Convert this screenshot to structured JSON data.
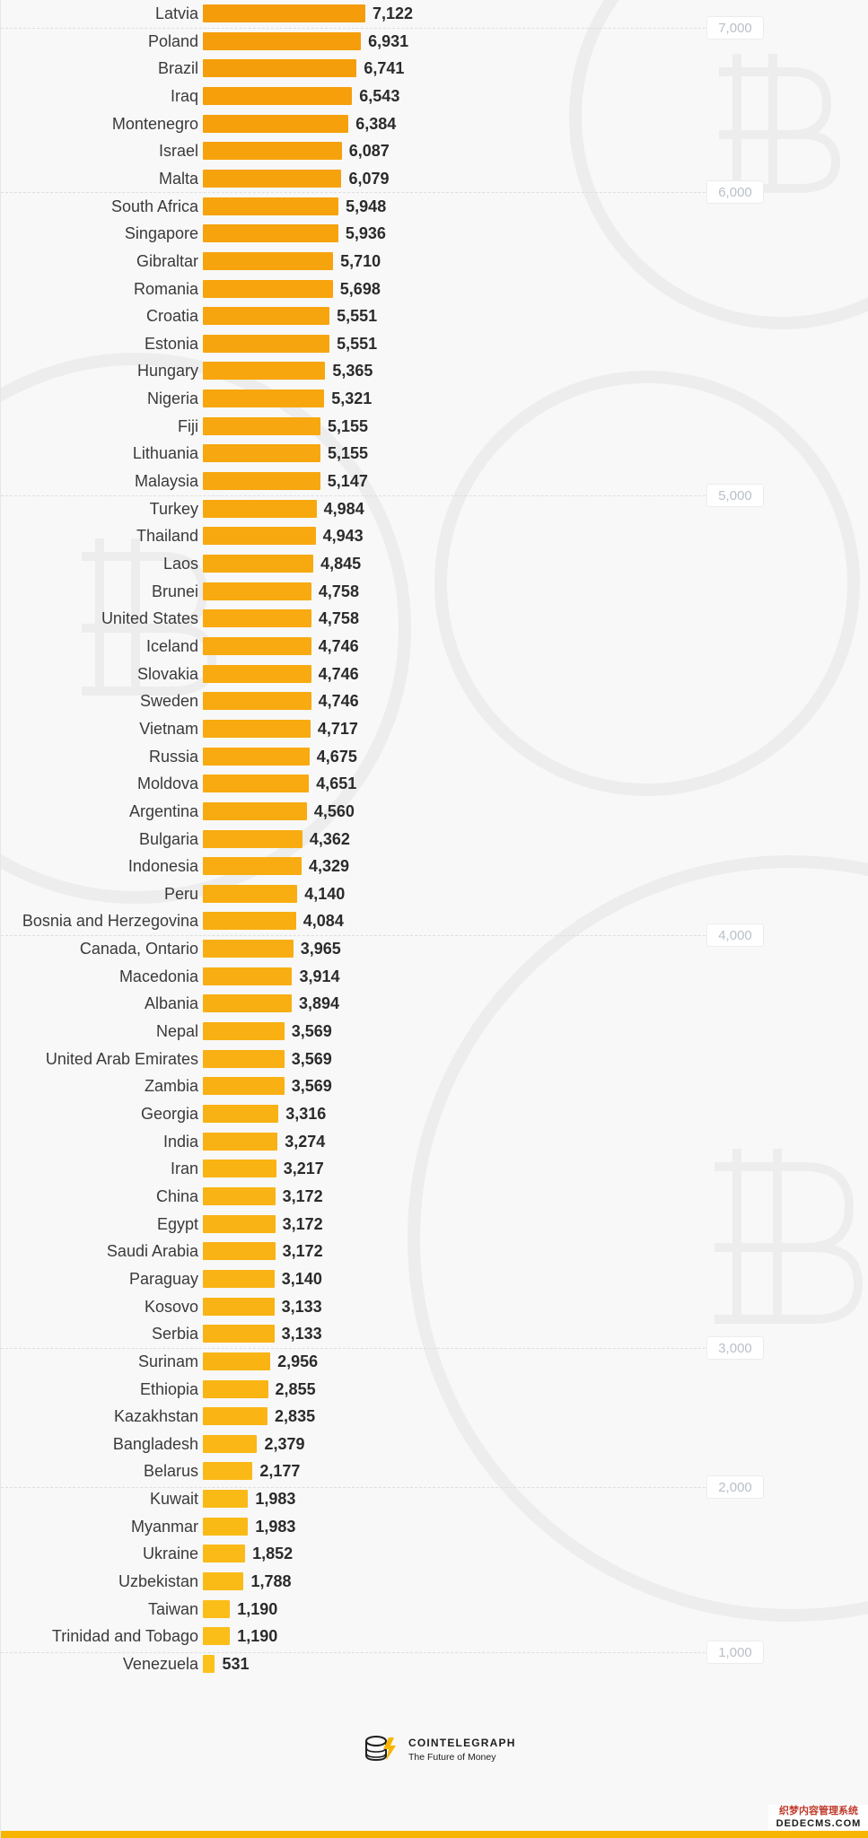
{
  "chart_data": {
    "type": "bar",
    "orientation": "horizontal",
    "reference_lines": [
      "7,000",
      "6,000",
      "5,000",
      "4,000",
      "3,000",
      "2,000",
      "1,000"
    ],
    "reference_values": [
      7000,
      6000,
      5000,
      4000,
      3000,
      2000,
      1000
    ],
    "bar_color_high": "#f59c0a",
    "bar_color_low": "#fcc21a",
    "rows": [
      {
        "category": "Latvia",
        "value": 7122,
        "label": "7,122"
      },
      {
        "category": "Poland",
        "value": 6931,
        "label": "6,931"
      },
      {
        "category": "Brazil",
        "value": 6741,
        "label": "6,741"
      },
      {
        "category": "Iraq",
        "value": 6543,
        "label": "6,543"
      },
      {
        "category": "Montenegro",
        "value": 6384,
        "label": "6,384"
      },
      {
        "category": "Israel",
        "value": 6087,
        "label": "6,087"
      },
      {
        "category": "Malta",
        "value": 6079,
        "label": "6,079"
      },
      {
        "category": "South Africa",
        "value": 5948,
        "label": "5,948"
      },
      {
        "category": "Singapore",
        "value": 5936,
        "label": "5,936"
      },
      {
        "category": "Gibraltar",
        "value": 5710,
        "label": "5,710"
      },
      {
        "category": "Romania",
        "value": 5698,
        "label": "5,698"
      },
      {
        "category": "Croatia",
        "value": 5551,
        "label": "5,551"
      },
      {
        "category": "Estonia",
        "value": 5551,
        "label": "5,551"
      },
      {
        "category": "Hungary",
        "value": 5365,
        "label": "5,365"
      },
      {
        "category": "Nigeria",
        "value": 5321,
        "label": "5,321"
      },
      {
        "category": "Fiji",
        "value": 5155,
        "label": "5,155"
      },
      {
        "category": "Lithuania",
        "value": 5155,
        "label": "5,155"
      },
      {
        "category": "Malaysia",
        "value": 5147,
        "label": "5,147"
      },
      {
        "category": "Turkey",
        "value": 4984,
        "label": "4,984"
      },
      {
        "category": "Thailand",
        "value": 4943,
        "label": "4,943"
      },
      {
        "category": "Laos",
        "value": 4845,
        "label": "4,845"
      },
      {
        "category": "Brunei",
        "value": 4758,
        "label": "4,758"
      },
      {
        "category": "United States",
        "value": 4758,
        "label": "4,758"
      },
      {
        "category": "Iceland",
        "value": 4746,
        "label": "4,746"
      },
      {
        "category": "Slovakia",
        "value": 4746,
        "label": "4,746"
      },
      {
        "category": "Sweden",
        "value": 4746,
        "label": "4,746"
      },
      {
        "category": "Vietnam",
        "value": 4717,
        "label": "4,717"
      },
      {
        "category": "Russia",
        "value": 4675,
        "label": "4,675"
      },
      {
        "category": "Moldova",
        "value": 4651,
        "label": "4,651"
      },
      {
        "category": "Argentina",
        "value": 4560,
        "label": "4,560"
      },
      {
        "category": "Bulgaria",
        "value": 4362,
        "label": "4,362"
      },
      {
        "category": "Indonesia",
        "value": 4329,
        "label": "4,329"
      },
      {
        "category": "Peru",
        "value": 4140,
        "label": "4,140"
      },
      {
        "category": "Bosnia and Herzegovina",
        "value": 4084,
        "label": "4,084"
      },
      {
        "category": "Canada, Ontario",
        "value": 3965,
        "label": "3,965"
      },
      {
        "category": "Macedonia",
        "value": 3914,
        "label": "3,914"
      },
      {
        "category": "Albania",
        "value": 3894,
        "label": "3,894"
      },
      {
        "category": "Nepal",
        "value": 3569,
        "label": "3,569"
      },
      {
        "category": "United Arab Emirates",
        "value": 3569,
        "label": "3,569"
      },
      {
        "category": "Zambia",
        "value": 3569,
        "label": "3,569"
      },
      {
        "category": "Georgia",
        "value": 3316,
        "label": "3,316"
      },
      {
        "category": "India",
        "value": 3274,
        "label": "3,274"
      },
      {
        "category": "Iran",
        "value": 3217,
        "label": "3,217"
      },
      {
        "category": "China",
        "value": 3172,
        "label": "3,172"
      },
      {
        "category": "Egypt",
        "value": 3172,
        "label": "3,172"
      },
      {
        "category": "Saudi Arabia",
        "value": 3172,
        "label": "3,172"
      },
      {
        "category": "Paraguay",
        "value": 3140,
        "label": "3,140"
      },
      {
        "category": "Kosovo",
        "value": 3133,
        "label": "3,133"
      },
      {
        "category": "Serbia",
        "value": 3133,
        "label": "3,133"
      },
      {
        "category": "Surinam",
        "value": 2956,
        "label": "2,956"
      },
      {
        "category": "Ethiopia",
        "value": 2855,
        "label": "2,855"
      },
      {
        "category": "Kazakhstan",
        "value": 2835,
        "label": "2,835"
      },
      {
        "category": "Bangladesh",
        "value": 2379,
        "label": "2,379"
      },
      {
        "category": "Belarus",
        "value": 2177,
        "label": "2,177"
      },
      {
        "category": "Kuwait",
        "value": 1983,
        "label": "1,983"
      },
      {
        "category": "Myanmar",
        "value": 1983,
        "label": "1,983"
      },
      {
        "category": "Ukraine",
        "value": 1852,
        "label": "1,852"
      },
      {
        "category": "Uzbekistan",
        "value": 1788,
        "label": "1,788"
      },
      {
        "category": "Taiwan",
        "value": 1190,
        "label": "1,190"
      },
      {
        "category": "Trinidad and Tobago",
        "value": 1190,
        "label": "1,190"
      },
      {
        "category": "Venezuela",
        "value": 531,
        "label": "531"
      }
    ]
  },
  "footer": {
    "brand": "COINTELEGRAPH",
    "tagline": "The Future of Money",
    "logo_icon": "cointelegraph-coin-icon",
    "accent_color": "#f7b500"
  },
  "badge": {
    "title": "织梦内容管理系统",
    "url": "DEDECMS.COM"
  }
}
